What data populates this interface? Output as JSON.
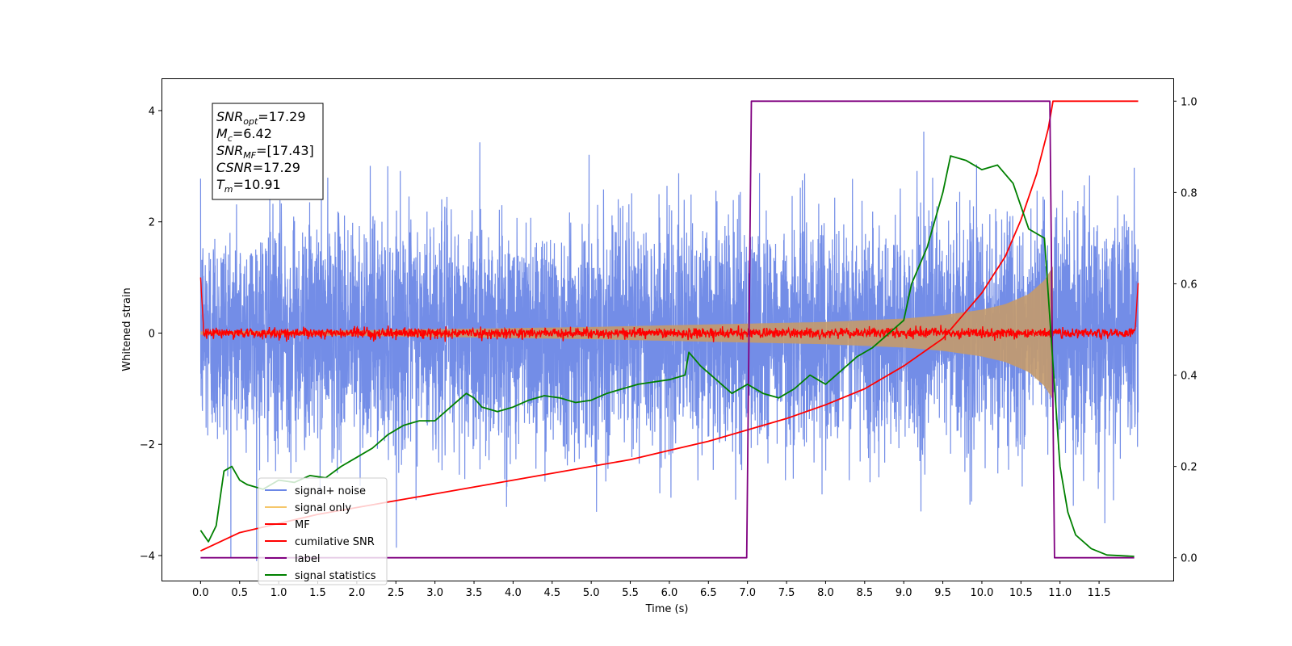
{
  "chart_data": {
    "type": "line",
    "xlabel": "Time (s)",
    "ylabel_left": "Whitened strain",
    "ylabel_right": "",
    "xlim": [
      -0.5,
      12.45
    ],
    "ylim_left": [
      -4.45,
      4.58
    ],
    "ylim_right": [
      -0.05,
      1.05
    ],
    "x_ticks": [
      "0.0",
      "0.5",
      "1.0",
      "1.5",
      "2.0",
      "2.5",
      "3.0",
      "3.5",
      "4.0",
      "4.5",
      "5.0",
      "5.5",
      "6.0",
      "6.5",
      "7.0",
      "7.5",
      "8.0",
      "8.5",
      "9.0",
      "9.5",
      "10.0",
      "10.5",
      "11.0",
      "11.5"
    ],
    "y_ticks_left": [
      "−4",
      "−2",
      "0",
      "2",
      "4"
    ],
    "y_ticks_right": [
      "0.0",
      "0.2",
      "0.4",
      "0.6",
      "0.8",
      "1.0"
    ],
    "grid": false,
    "legend_position": "lower-left",
    "annotation": [
      {
        "base": "SNR",
        "sub": "opt",
        "value": "=17.29"
      },
      {
        "base": "M",
        "sub": "c",
        "value": "=6.42"
      },
      {
        "base": "SNR",
        "sub": "MF",
        "value": "=[17.43]"
      },
      {
        "base": "CSNR",
        "sub": "",
        "value": "=17.29"
      },
      {
        "base": "T",
        "sub": "m",
        "value": "=10.91"
      }
    ],
    "series": [
      {
        "name": "signal+ noise",
        "color": "#6b87e6",
        "axis": "left",
        "kind": "noise",
        "x_range": [
          0,
          12
        ],
        "amplitude_std": 1.0
      },
      {
        "name": "signal only",
        "color": "#f5c76b",
        "axis": "left",
        "kind": "chirp-envelope",
        "x": [
          0,
          1,
          2,
          3,
          4,
          5,
          6,
          7,
          8,
          9,
          9.5,
          10,
          10.3,
          10.6,
          10.8,
          10.91
        ],
        "values": [
          0.03,
          0.04,
          0.05,
          0.07,
          0.09,
          0.11,
          0.14,
          0.17,
          0.2,
          0.26,
          0.32,
          0.42,
          0.52,
          0.7,
          0.95,
          1.2
        ]
      },
      {
        "name": "MF",
        "color": "#ff0000",
        "axis": "left",
        "kind": "mf",
        "x_range": [
          0,
          12
        ],
        "level": 0.0
      },
      {
        "name": "cumilative SNR",
        "color": "#ff0000",
        "axis": "right",
        "x": [
          0,
          0.5,
          1,
          1.5,
          2,
          2.5,
          3,
          3.5,
          4,
          4.5,
          5,
          5.5,
          6,
          6.5,
          7,
          7.5,
          8,
          8.5,
          9,
          9.5,
          10,
          10.3,
          10.5,
          10.7,
          10.85,
          10.91,
          11,
          12
        ],
        "values": [
          0.015,
          0.055,
          0.075,
          0.095,
          0.11,
          0.125,
          0.14,
          0.155,
          0.17,
          0.185,
          0.2,
          0.215,
          0.235,
          0.255,
          0.28,
          0.305,
          0.335,
          0.37,
          0.42,
          0.48,
          0.58,
          0.66,
          0.74,
          0.84,
          0.94,
          1.0,
          1.0,
          1.0
        ]
      },
      {
        "name": "label",
        "color": "#800080",
        "axis": "right",
        "x": [
          0,
          6.99,
          7.05,
          10.87,
          10.93,
          11.95
        ],
        "values": [
          0,
          0,
          1,
          1,
          0,
          0
        ]
      },
      {
        "name": "signal statistics",
        "color": "#008000",
        "axis": "right",
        "x": [
          0,
          0.1,
          0.2,
          0.3,
          0.4,
          0.5,
          0.6,
          0.8,
          1,
          1.2,
          1.4,
          1.6,
          1.8,
          2,
          2.2,
          2.4,
          2.6,
          2.8,
          3,
          3.2,
          3.4,
          3.5,
          3.6,
          3.8,
          4,
          4.2,
          4.4,
          4.6,
          4.8,
          5,
          5.2,
          5.4,
          5.6,
          5.8,
          6,
          6.2,
          6.25,
          6.4,
          6.6,
          6.8,
          7,
          7.2,
          7.4,
          7.6,
          7.8,
          8,
          8.2,
          8.4,
          8.6,
          8.8,
          9,
          9.1,
          9.3,
          9.5,
          9.6,
          9.8,
          10,
          10.2,
          10.4,
          10.6,
          10.8,
          10.9,
          11,
          11.1,
          11.2,
          11.4,
          11.6,
          11.95
        ],
        "values": [
          0.06,
          0.035,
          0.07,
          0.19,
          0.2,
          0.17,
          0.16,
          0.15,
          0.17,
          0.165,
          0.18,
          0.175,
          0.2,
          0.22,
          0.24,
          0.27,
          0.29,
          0.3,
          0.3,
          0.33,
          0.36,
          0.35,
          0.33,
          0.32,
          0.33,
          0.345,
          0.355,
          0.35,
          0.34,
          0.345,
          0.36,
          0.37,
          0.38,
          0.385,
          0.39,
          0.4,
          0.45,
          0.42,
          0.39,
          0.36,
          0.38,
          0.36,
          0.35,
          0.37,
          0.4,
          0.38,
          0.41,
          0.44,
          0.46,
          0.49,
          0.52,
          0.6,
          0.68,
          0.8,
          0.88,
          0.87,
          0.85,
          0.86,
          0.82,
          0.72,
          0.7,
          0.45,
          0.2,
          0.1,
          0.05,
          0.02,
          0.006,
          0.003
        ]
      }
    ]
  }
}
